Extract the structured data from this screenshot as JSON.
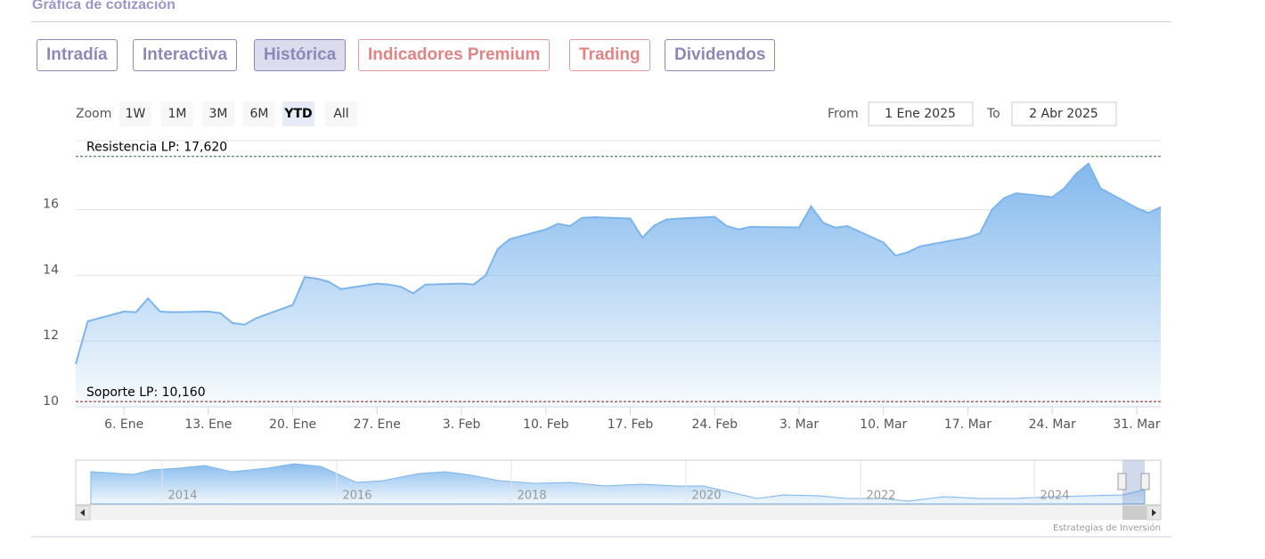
{
  "header": {
    "title": "Gráfica de cotización"
  },
  "tabs": [
    "Intradía",
    "Interactiva",
    "Histórica",
    "Indicadores Premium",
    "Trading",
    "Dividendos"
  ],
  "zoom": {
    "label": "Zoom",
    "buttons": [
      "1W",
      "1M",
      "3M",
      "6M",
      "YTD",
      "All"
    ]
  },
  "range": {
    "from_label": "From",
    "from": "1 Ene 2025",
    "to_label": "To",
    "to": "2 Abr 2025"
  },
  "chart_data": {
    "type": "area",
    "color": "#7cb5ec",
    "grid": true,
    "x": [
      "2025-01-02",
      "2025-01-03",
      "2025-01-06",
      "2025-01-07",
      "2025-01-08",
      "2025-01-09",
      "2025-01-10",
      "2025-01-13",
      "2025-01-14",
      "2025-01-15",
      "2025-01-16",
      "2025-01-17",
      "2025-01-20",
      "2025-01-21",
      "2025-01-22",
      "2025-01-23",
      "2025-01-24",
      "2025-01-27",
      "2025-01-28",
      "2025-01-29",
      "2025-01-30",
      "2025-01-31",
      "2025-02-03",
      "2025-02-04",
      "2025-02-05",
      "2025-02-06",
      "2025-02-07",
      "2025-02-10",
      "2025-02-11",
      "2025-02-12",
      "2025-02-13",
      "2025-02-14",
      "2025-02-17",
      "2025-02-18",
      "2025-02-19",
      "2025-02-20",
      "2025-02-21",
      "2025-02-24",
      "2025-02-25",
      "2025-02-26",
      "2025-02-27",
      "2025-02-28",
      "2025-03-03",
      "2025-03-04",
      "2025-03-05",
      "2025-03-06",
      "2025-03-07",
      "2025-03-10",
      "2025-03-11",
      "2025-03-12",
      "2025-03-13",
      "2025-03-14",
      "2025-03-17",
      "2025-03-18",
      "2025-03-19",
      "2025-03-20",
      "2025-03-21",
      "2025-03-24",
      "2025-03-25",
      "2025-03-26",
      "2025-03-27",
      "2025-03-28",
      "2025-03-31",
      "2025-04-01",
      "2025-04-02"
    ],
    "values": [
      11.3,
      12.6,
      12.9,
      12.88,
      13.3,
      12.9,
      12.88,
      12.9,
      12.85,
      12.55,
      12.5,
      12.7,
      13.1,
      13.95,
      13.9,
      13.8,
      13.58,
      13.75,
      13.72,
      13.65,
      13.45,
      13.72,
      13.75,
      13.72,
      14.0,
      14.8,
      15.1,
      15.4,
      15.57,
      15.5,
      15.75,
      15.77,
      15.73,
      15.15,
      15.52,
      15.7,
      15.73,
      15.78,
      15.5,
      15.4,
      15.48,
      15.47,
      15.46,
      16.1,
      15.6,
      15.45,
      15.5,
      15.0,
      14.6,
      14.7,
      14.88,
      14.95,
      15.15,
      15.28,
      16.0,
      16.35,
      16.5,
      16.38,
      16.65,
      17.1,
      17.4,
      16.65,
      16.05,
      15.9,
      16.08
    ],
    "xlim": [
      "2025-01-02",
      "2025-04-02"
    ],
    "xticks": [
      {
        "value": "2025-01-06",
        "label": "6. Ene"
      },
      {
        "value": "2025-01-13",
        "label": "13. Ene"
      },
      {
        "value": "2025-01-20",
        "label": "20. Ene"
      },
      {
        "value": "2025-01-27",
        "label": "27. Ene"
      },
      {
        "value": "2025-02-03",
        "label": "3. Feb"
      },
      {
        "value": "2025-02-10",
        "label": "10. Feb"
      },
      {
        "value": "2025-02-17",
        "label": "17. Feb"
      },
      {
        "value": "2025-02-24",
        "label": "24. Feb"
      },
      {
        "value": "2025-03-03",
        "label": "3. Mar"
      },
      {
        "value": "2025-03-10",
        "label": "10. Mar"
      },
      {
        "value": "2025-03-17",
        "label": "17. Mar"
      },
      {
        "value": "2025-03-24",
        "label": "24. Mar"
      },
      {
        "value": "2025-03-31",
        "label": "31. Mar"
      }
    ],
    "ylim": [
      10,
      18.1
    ],
    "yticks": [
      10,
      12,
      14,
      16
    ],
    "plot_lines": [
      {
        "label": "Resistencia LP: 17,620",
        "value": 17.62,
        "color": "#2e6b2e"
      },
      {
        "label": "Soporte LP: 10,160",
        "value": 10.16,
        "color": "#8b1a1a"
      }
    ]
  },
  "navigator": {
    "labels": [
      "2014",
      "2016",
      "2018",
      "2020",
      "2022",
      "2024"
    ]
  },
  "credits": "Estrategias de Inversión"
}
